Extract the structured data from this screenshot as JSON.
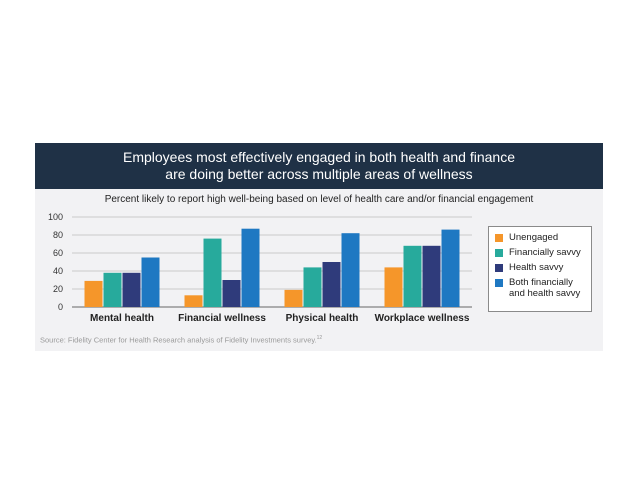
{
  "header": {
    "title_line1": "Employees most effectively engaged in both health and finance",
    "title_line2": "are doing better across multiple areas of wellness"
  },
  "chart_data": {
    "type": "bar",
    "subtitle": "Percent likely to report high well-being based on level of health care and/or financial engagement",
    "categories": [
      "Mental health",
      "Financial wellness",
      "Physical health",
      "Workplace wellness"
    ],
    "series": [
      {
        "name": "Unengaged",
        "color": "#f5962a",
        "values": [
          29,
          13,
          19,
          44
        ]
      },
      {
        "name": "Financially savvy",
        "color": "#27aa9c",
        "values": [
          38,
          76,
          44,
          68
        ]
      },
      {
        "name": "Health savvy",
        "color": "#2f3b7b",
        "values": [
          38,
          30,
          50,
          68
        ]
      },
      {
        "name": "Both financially and health savvy",
        "color": "#1e78c2",
        "values": [
          55,
          87,
          82,
          86
        ]
      }
    ],
    "yticks": [
      0,
      20,
      40,
      60,
      80,
      100
    ],
    "ylim": [
      0,
      100
    ],
    "grid": true,
    "legend_position": "right",
    "legend_lines": [
      [
        "Unengaged"
      ],
      [
        "Financially savvy"
      ],
      [
        "Health savvy"
      ],
      [
        "Both financially",
        "and health savvy"
      ]
    ]
  },
  "source": {
    "text": "Source: Fidelity Center for Health Research analysis of Fidelity Investments survey.",
    "footnote": "12"
  }
}
